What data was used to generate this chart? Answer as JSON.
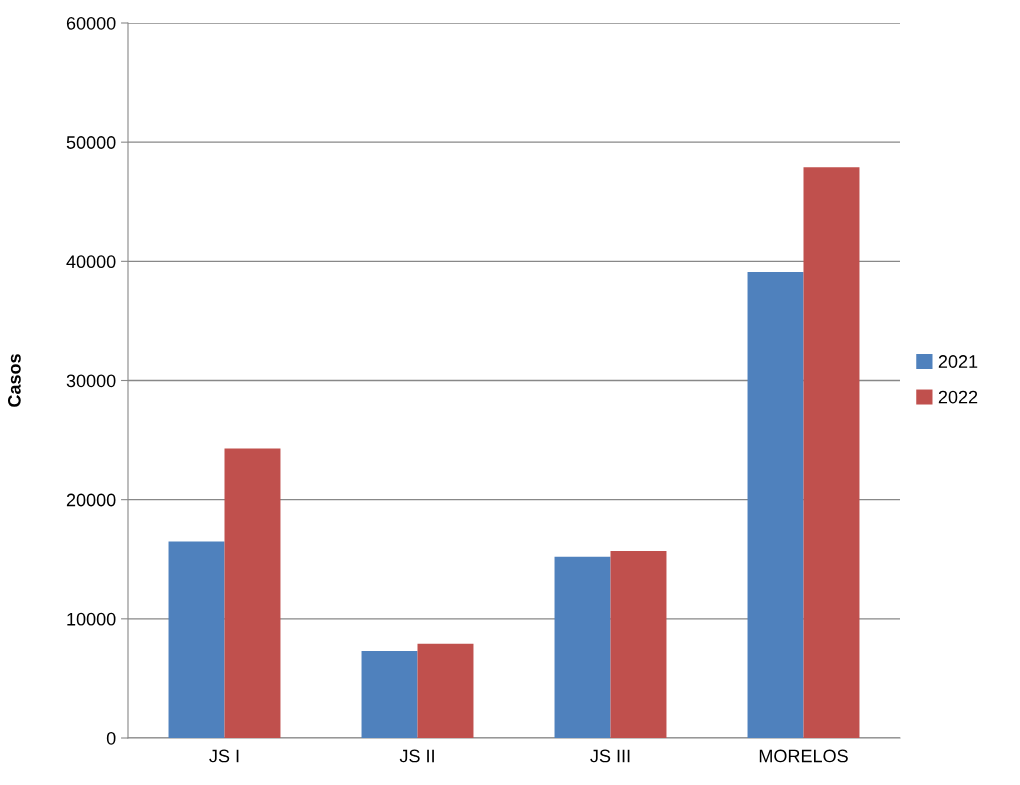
{
  "chart_data": {
    "type": "bar",
    "ylabel": "Casos",
    "categories": [
      "JS I",
      "JS II",
      "JS III",
      "MORELOS"
    ],
    "series": [
      {
        "name": "2021",
        "color": "#4f81bd",
        "values": [
          16500,
          7300,
          15200,
          39100
        ]
      },
      {
        "name": "2022",
        "color": "#c0504d",
        "values": [
          24300,
          7900,
          15700,
          47900
        ]
      }
    ],
    "ylim": [
      0,
      60000
    ],
    "yticks": [
      0,
      10000,
      20000,
      30000,
      40000,
      50000,
      60000
    ],
    "grid": "y",
    "legend": "right"
  }
}
